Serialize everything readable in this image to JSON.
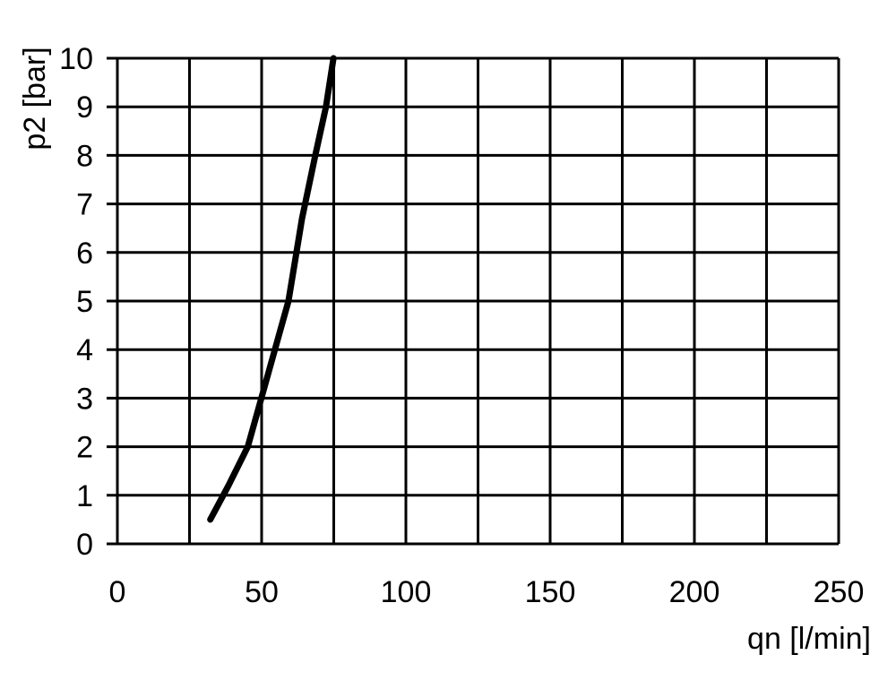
{
  "chart_data": {
    "type": "line",
    "title": "",
    "xlabel": "qn [l/min]",
    "ylabel": "p2 [bar]",
    "xlim": [
      0,
      250
    ],
    "ylim": [
      0,
      10
    ],
    "xticks": [
      0,
      50,
      100,
      150,
      200,
      250
    ],
    "yticks": [
      0,
      1,
      2,
      3,
      4,
      5,
      6,
      7,
      8,
      9,
      10
    ],
    "x_gridlines": [
      0,
      25,
      50,
      75,
      100,
      125,
      150,
      175,
      200,
      225,
      250
    ],
    "grid": true,
    "line_color": "#000000",
    "series": [
      {
        "x": [
          32.2,
          38.5,
          45.2,
          49.9,
          54.6,
          59.3,
          64.0,
          68.6,
          72.3,
          74.9
        ],
        "y": [
          0.5,
          1.2,
          2.0,
          3.0,
          4.0,
          5.0,
          6.7,
          8.0,
          9.0,
          10.0
        ]
      }
    ]
  }
}
